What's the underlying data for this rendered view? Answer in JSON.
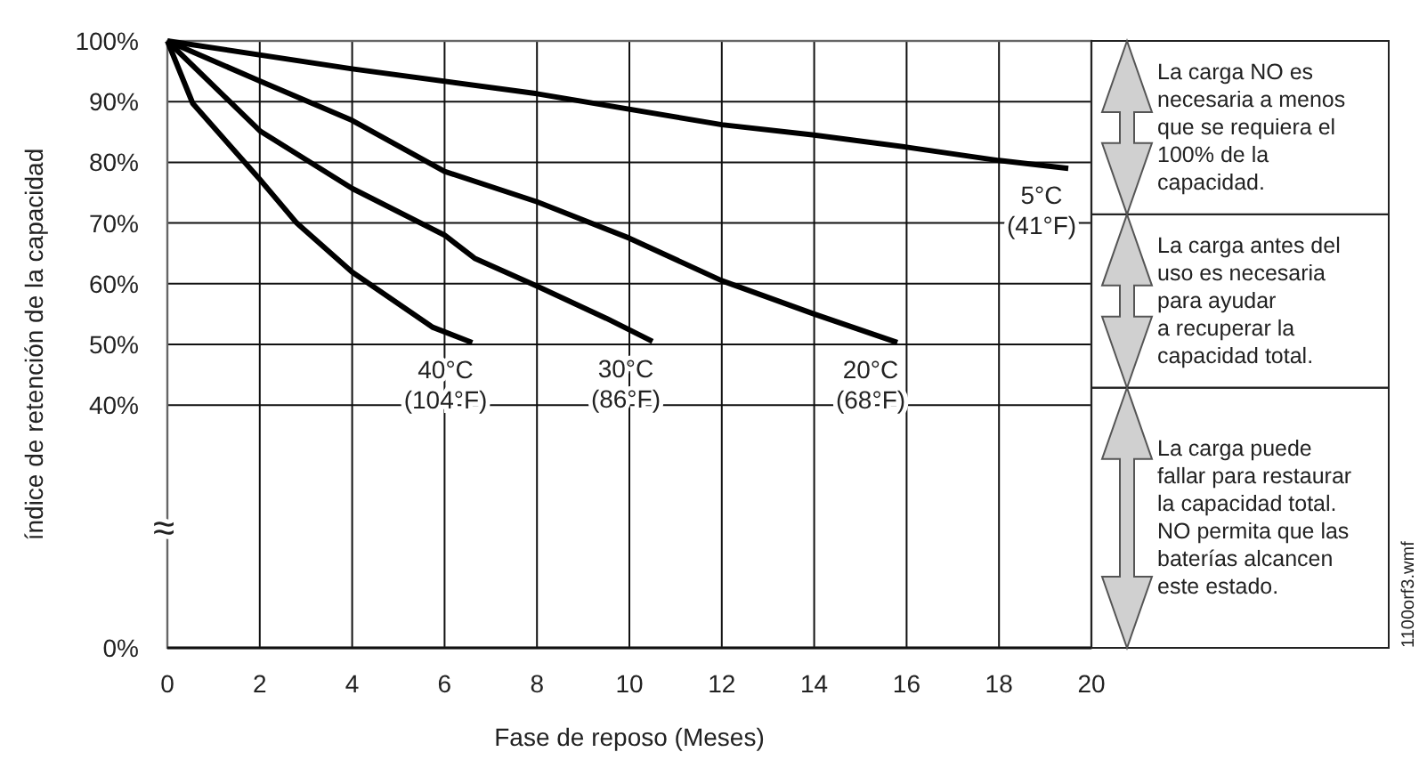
{
  "chart_data": {
    "type": "line",
    "xlabel": "Fase de reposo (Meses)",
    "ylabel": "índice de retención de la capacidad",
    "xlim": [
      0,
      20
    ],
    "xticks": [
      0,
      2,
      4,
      6,
      8,
      10,
      12,
      14,
      16,
      18,
      20
    ],
    "ylim": [
      0,
      100
    ],
    "yticks": [
      {
        "value": 0,
        "label": "0%"
      },
      {
        "value": 40,
        "label": "40%"
      },
      {
        "value": 50,
        "label": "50%"
      },
      {
        "value": 60,
        "label": "60%"
      },
      {
        "value": 70,
        "label": "70%"
      },
      {
        "value": 80,
        "label": "80%"
      },
      {
        "value": 90,
        "label": "90%"
      },
      {
        "value": 100,
        "label": "100%"
      }
    ],
    "grid": true,
    "marker": "none",
    "line_style": "solid",
    "series": [
      {
        "name": "5°C (41°F)",
        "color": "#000000",
        "x": [
          0,
          4,
          8,
          12,
          14,
          16,
          18,
          19.5
        ],
        "values": [
          100,
          95.4,
          91.3,
          86.2,
          84.5,
          82.5,
          80.3,
          79
        ]
      },
      {
        "name": "20°C (68°F)",
        "color": "#000000",
        "x": [
          0,
          2,
          4,
          6,
          8,
          10,
          12,
          14,
          15.8
        ],
        "values": [
          100,
          93.4,
          86.9,
          78.5,
          73.5,
          67.5,
          60.5,
          55,
          50.3
        ]
      },
      {
        "name": "30°C (86°F)",
        "color": "#000000",
        "x": [
          0,
          2,
          4,
          6,
          6.65,
          8,
          9.5,
          10.5
        ],
        "values": [
          100,
          85.2,
          75.7,
          68,
          64.2,
          59.6,
          54.3,
          50.5
        ]
      },
      {
        "name": "40°C (104°F)",
        "color": "#000000",
        "x": [
          0,
          0.55,
          2,
          2.8,
          4,
          5.75,
          6.6
        ],
        "values": [
          100,
          89.7,
          77.2,
          70,
          61.9,
          52.8,
          50.3
        ]
      }
    ],
    "annotations": [
      "≈",
      "La carga NO es\nnecesaria a menos\nque se requiera el\n100% de la\ncapacidad.",
      "La carga antes del\nuso es necesaria\npara ayudar\na recuperar la\ncapacidad total.",
      "La carga puede\nfallar para restaurar\nla capacidad total.\nNO permita que las\nbaterías alcancen\neste estado.",
      "1100orf3.wmf"
    ]
  }
}
